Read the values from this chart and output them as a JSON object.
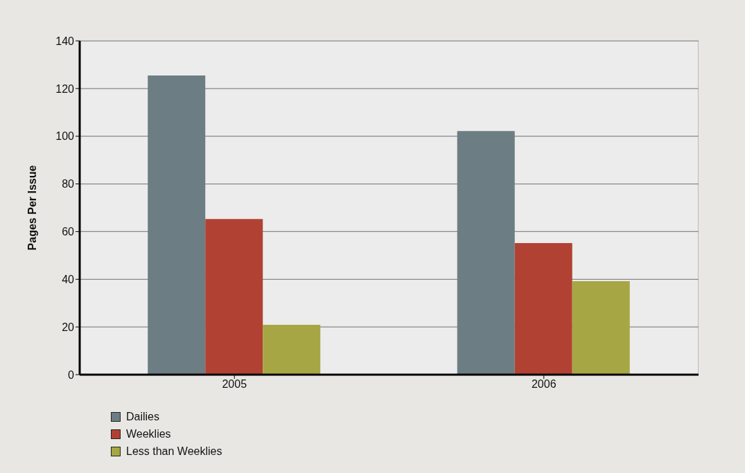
{
  "chart_data": {
    "type": "bar",
    "ylabel": "Pages Per Issue",
    "categories": [
      "2005",
      "2006"
    ],
    "series": [
      {
        "name": "Dailies",
        "color": "#6d7d84",
        "values": [
          125.5,
          102.2
        ]
      },
      {
        "name": "Weeklies",
        "color": "#b14233",
        "values": [
          65.3,
          55.2
        ]
      },
      {
        "name": "Less than Weeklies",
        "color": "#a6a744",
        "values": [
          20.9,
          39.2
        ]
      }
    ],
    "ylim": [
      0,
      140
    ],
    "yticks": [
      0,
      20,
      40,
      60,
      80,
      100,
      120,
      140
    ],
    "grid": "y",
    "legend": "bottom left"
  }
}
